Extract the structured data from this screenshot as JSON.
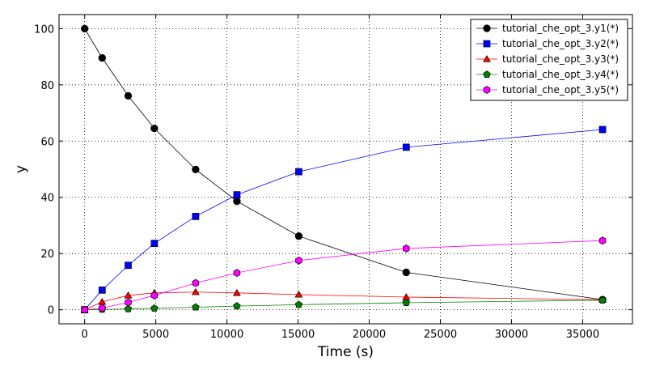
{
  "chart_data": {
    "type": "line",
    "title": "",
    "xlabel": "Time (s)",
    "ylabel": "y",
    "xlim": [
      -1800,
      38500
    ],
    "ylim": [
      -5,
      105
    ],
    "xticks": [
      0,
      5000,
      10000,
      15000,
      20000,
      25000,
      30000,
      35000
    ],
    "yticks": [
      0,
      20,
      40,
      60,
      80,
      100
    ],
    "grid": true,
    "legend_position": "top-right",
    "x": [
      0,
      1230,
      3060,
      4900,
      7800,
      10700,
      15050,
      22600,
      36400
    ],
    "series": [
      {
        "name": "tutorial_che_opt_3.y1(*)",
        "color": "#000000",
        "marker": "circle",
        "values": [
          100,
          89.6,
          76.1,
          64.5,
          49.9,
          38.6,
          26.2,
          13.3,
          3.6
        ]
      },
      {
        "name": "tutorial_che_opt_3.y2(*)",
        "color": "#0000ff",
        "marker": "square",
        "values": [
          0,
          7.0,
          15.8,
          23.6,
          33.2,
          40.9,
          49.1,
          57.8,
          64.1
        ]
      },
      {
        "name": "tutorial_che_opt_3.y3(*)",
        "color": "#ff0000",
        "marker": "triangle",
        "values": [
          0,
          2.8,
          5.1,
          6.0,
          6.3,
          6.0,
          5.4,
          4.5,
          3.6
        ]
      },
      {
        "name": "tutorial_che_opt_3.y4(*)",
        "color": "#008000",
        "marker": "pentagon",
        "values": [
          0,
          0.1,
          0.3,
          0.5,
          0.9,
          1.3,
          1.8,
          2.5,
          3.4
        ]
      },
      {
        "name": "tutorial_che_opt_3.y5(*)",
        "color": "#ff00ff",
        "marker": "hexagon",
        "values": [
          0,
          0.6,
          2.6,
          5.1,
          9.5,
          13.1,
          17.5,
          21.8,
          24.6
        ]
      }
    ]
  }
}
